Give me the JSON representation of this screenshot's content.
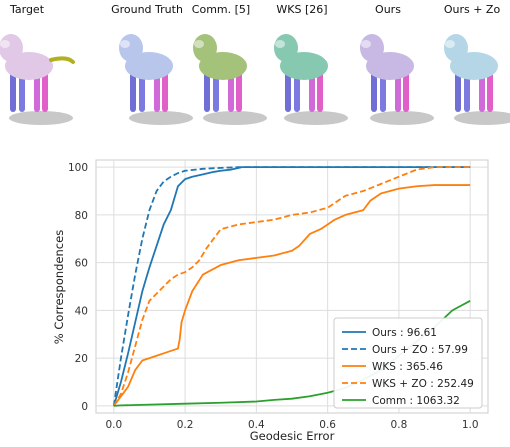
{
  "panels": [
    {
      "title": "Target",
      "body_color": "#e0c8e6",
      "shadow": true
    },
    {
      "title": "Ground Truth",
      "body_color": "#b8c6ec"
    },
    {
      "title": "Comm. [5]",
      "body_color": "#a5c27a"
    },
    {
      "title": "WKS [26]",
      "body_color": "#86c9b0"
    },
    {
      "title": "Ours",
      "body_color": "#c8b9e4"
    },
    {
      "title": "Ours + Zo",
      "body_color": "#b4d6e6"
    }
  ],
  "chart_data": {
    "type": "line",
    "title": "",
    "xlabel": "Geodesic Error",
    "ylabel": "% Correspondences",
    "xlim": [
      -0.05,
      1.05
    ],
    "ylim": [
      -3,
      103
    ],
    "xticks": [
      "0.0",
      "0.2",
      "0.4",
      "0.6",
      "0.8",
      "1.0"
    ],
    "yticks": [
      "0",
      "20",
      "40",
      "60",
      "80",
      "100"
    ],
    "grid": true,
    "legend_position": "bottom-right",
    "series": [
      {
        "name": "Ours : 96.61",
        "color": "#1f77b4",
        "dash": "solid",
        "x": [
          0.0,
          0.02,
          0.04,
          0.06,
          0.08,
          0.1,
          0.12,
          0.14,
          0.16,
          0.18,
          0.2,
          0.22,
          0.25,
          0.28,
          0.3,
          0.33,
          0.36,
          0.4,
          0.5,
          0.6,
          0.8,
          1.0
        ],
        "y": [
          0,
          10,
          22,
          35,
          48,
          58,
          67,
          76,
          82,
          92,
          95,
          96,
          97,
          98,
          98.5,
          99,
          100,
          100,
          100,
          100,
          100,
          100
        ]
      },
      {
        "name": "Ours + ZO : 57.99",
        "color": "#1f77b4",
        "dash": "dashed",
        "x": [
          0.0,
          0.02,
          0.04,
          0.06,
          0.08,
          0.1,
          0.12,
          0.14,
          0.16,
          0.18,
          0.2,
          0.25,
          0.3,
          0.35,
          0.4,
          1.0
        ],
        "y": [
          0,
          20,
          38,
          55,
          70,
          82,
          90,
          94,
          96,
          97.5,
          98.5,
          99.3,
          99.7,
          100,
          100,
          100
        ]
      },
      {
        "name": "WKS : 365.46",
        "color": "#ff7f0e",
        "dash": "solid",
        "x": [
          0.0,
          0.02,
          0.04,
          0.06,
          0.08,
          0.1,
          0.12,
          0.14,
          0.16,
          0.18,
          0.185,
          0.19,
          0.2,
          0.22,
          0.25,
          0.3,
          0.35,
          0.4,
          0.45,
          0.5,
          0.52,
          0.55,
          0.58,
          0.6,
          0.62,
          0.65,
          0.7,
          0.72,
          0.75,
          0.8,
          0.85,
          0.9,
          1.0
        ],
        "y": [
          0,
          4,
          8,
          15,
          19,
          20,
          21,
          22,
          23,
          24,
          28,
          35,
          40,
          48,
          55,
          59,
          61,
          62,
          63,
          65,
          67,
          72,
          74,
          76,
          78,
          80,
          82,
          86,
          89,
          91,
          92,
          92.5,
          92.5
        ]
      },
      {
        "name": "WKS + ZO : 252.49",
        "color": "#ff7f0e",
        "dash": "dashed",
        "x": [
          0.0,
          0.02,
          0.04,
          0.06,
          0.08,
          0.1,
          0.12,
          0.14,
          0.16,
          0.18,
          0.2,
          0.22,
          0.24,
          0.26,
          0.3,
          0.35,
          0.4,
          0.45,
          0.5,
          0.55,
          0.6,
          0.65,
          0.7,
          0.75,
          0.8,
          0.85,
          0.9,
          1.0
        ],
        "y": [
          0,
          5,
          14,
          25,
          36,
          44,
          47,
          50,
          53,
          55,
          56,
          58,
          61,
          66,
          74,
          76,
          77,
          78,
          80,
          81,
          83,
          88,
          90,
          93,
          96,
          99,
          100,
          100
        ]
      },
      {
        "name": "Comm : 1063.32",
        "color": "#2ca02c",
        "dash": "solid",
        "x": [
          0.0,
          0.02,
          0.05,
          0.1,
          0.2,
          0.3,
          0.4,
          0.45,
          0.5,
          0.55,
          0.6,
          0.65,
          0.7,
          0.75,
          0.8,
          0.85,
          0.9,
          0.95,
          1.0
        ],
        "y": [
          0,
          0.2,
          0.3,
          0.5,
          0.9,
          1.3,
          1.8,
          2.5,
          3.0,
          4.0,
          5.5,
          7.5,
          11,
          15,
          21,
          27,
          33,
          40,
          44
        ]
      }
    ]
  }
}
